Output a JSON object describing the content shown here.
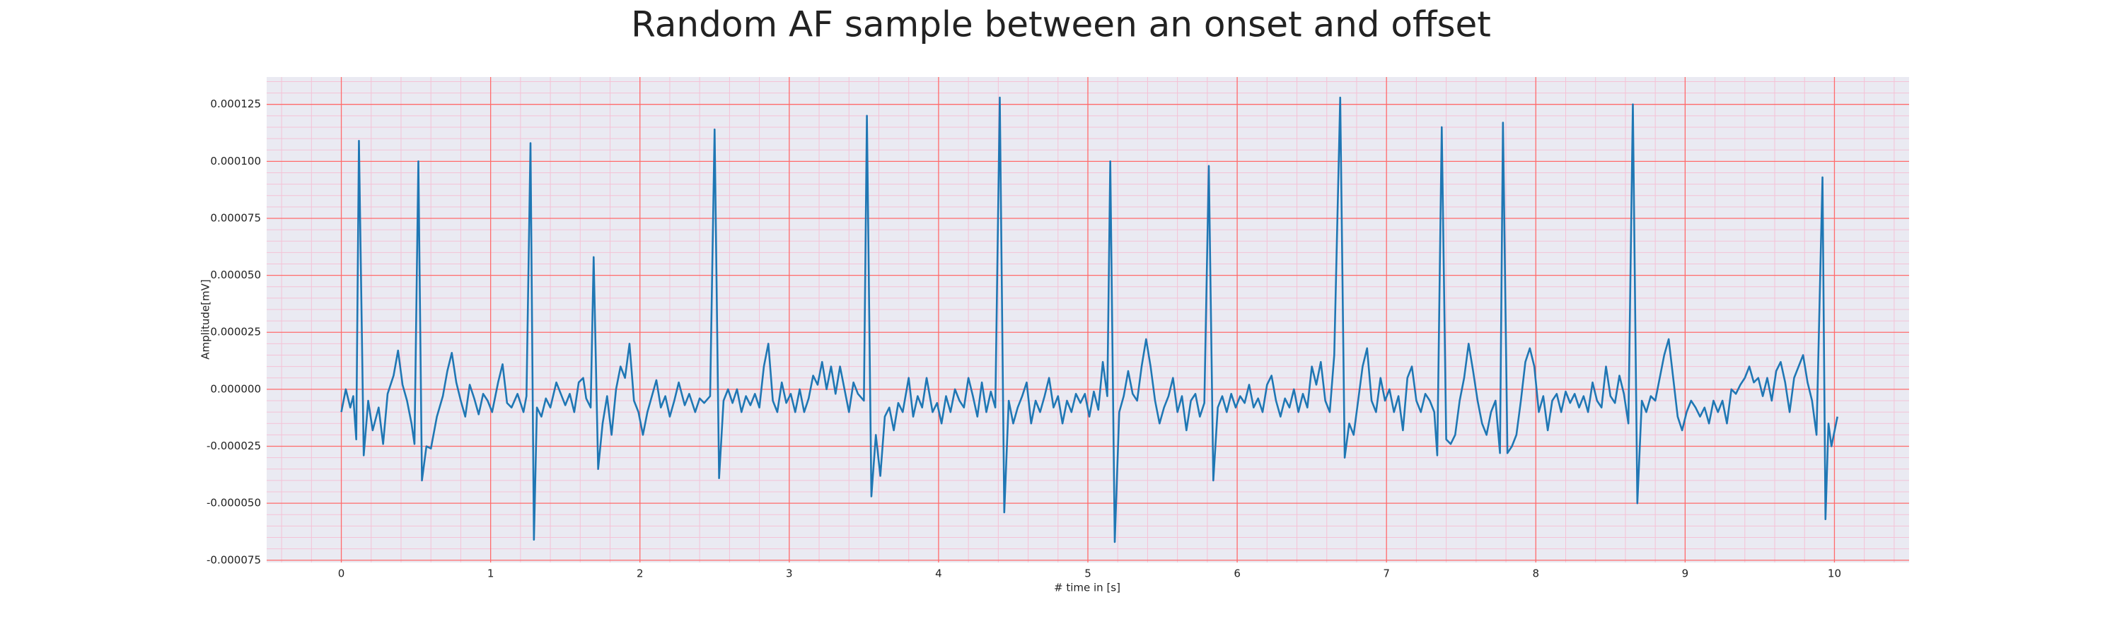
{
  "chart_data": {
    "type": "line",
    "title": "Random AF sample between an onset and offset",
    "x_label": "# time in [s]",
    "y_label": "Amplitude[mV]",
    "color": "#1f77b4",
    "grid": true,
    "minor_grid": true,
    "xlim": [
      -0.5,
      10.5
    ],
    "ylim": [
      -7.6e-05,
      0.000137
    ],
    "xticks": [
      0,
      1,
      2,
      3,
      4,
      5,
      6,
      7,
      8,
      9,
      10
    ],
    "yticks": [
      {
        "value": -7.5e-05,
        "label": "-0.000075"
      },
      {
        "value": -5e-05,
        "label": "-0.000050"
      },
      {
        "value": -2.5e-05,
        "label": "-0.000025"
      },
      {
        "value": 0,
        "label": "0.000000"
      },
      {
        "value": 2.5e-05,
        "label": "0.000025"
      },
      {
        "value": 5e-05,
        "label": "0.000050"
      },
      {
        "value": 7.5e-05,
        "label": "0.000075"
      },
      {
        "value": 0.0001,
        "label": "0.000100"
      },
      {
        "value": 0.000125,
        "label": "0.000125"
      }
    ],
    "x": [
      0.0,
      0.03,
      0.06,
      0.08,
      0.1,
      0.118,
      0.15,
      0.18,
      0.21,
      0.25,
      0.28,
      0.31,
      0.35,
      0.38,
      0.41,
      0.44,
      0.47,
      0.49,
      0.516,
      0.54,
      0.57,
      0.6,
      0.64,
      0.68,
      0.71,
      0.74,
      0.77,
      0.8,
      0.83,
      0.86,
      0.89,
      0.92,
      0.95,
      0.98,
      1.01,
      1.05,
      1.08,
      1.11,
      1.14,
      1.18,
      1.22,
      1.24,
      1.267,
      1.29,
      1.31,
      1.34,
      1.37,
      1.4,
      1.44,
      1.47,
      1.5,
      1.53,
      1.56,
      1.59,
      1.62,
      1.64,
      1.67,
      1.69,
      1.72,
      1.75,
      1.78,
      1.81,
      1.84,
      1.87,
      1.9,
      1.93,
      1.96,
      1.99,
      2.02,
      2.05,
      2.08,
      2.11,
      2.14,
      2.17,
      2.2,
      2.23,
      2.26,
      2.3,
      2.33,
      2.37,
      2.4,
      2.43,
      2.47,
      2.5,
      2.53,
      2.56,
      2.59,
      2.62,
      2.65,
      2.68,
      2.71,
      2.74,
      2.77,
      2.8,
      2.83,
      2.86,
      2.89,
      2.92,
      2.95,
      2.98,
      3.01,
      3.04,
      3.07,
      3.1,
      3.13,
      3.16,
      3.19,
      3.22,
      3.25,
      3.28,
      3.31,
      3.34,
      3.37,
      3.4,
      3.43,
      3.46,
      3.5,
      3.52,
      3.55,
      3.58,
      3.61,
      3.64,
      3.67,
      3.7,
      3.73,
      3.76,
      3.8,
      3.83,
      3.86,
      3.89,
      3.92,
      3.96,
      3.99,
      4.02,
      4.05,
      4.08,
      4.11,
      4.14,
      4.17,
      4.2,
      4.23,
      4.26,
      4.29,
      4.32,
      4.35,
      4.38,
      4.41,
      4.44,
      4.47,
      4.5,
      4.53,
      4.56,
      4.59,
      4.62,
      4.65,
      4.68,
      4.71,
      4.74,
      4.77,
      4.8,
      4.83,
      4.86,
      4.89,
      4.92,
      4.95,
      4.98,
      5.01,
      5.04,
      5.07,
      5.1,
      5.13,
      5.15,
      5.18,
      5.21,
      5.24,
      5.27,
      5.3,
      5.33,
      5.36,
      5.39,
      5.42,
      5.45,
      5.48,
      5.51,
      5.54,
      5.57,
      5.6,
      5.63,
      5.66,
      5.69,
      5.72,
      5.75,
      5.78,
      5.81,
      5.84,
      5.87,
      5.9,
      5.93,
      5.96,
      5.99,
      6.02,
      6.05,
      6.08,
      6.11,
      6.14,
      6.17,
      6.2,
      6.23,
      6.26,
      6.29,
      6.32,
      6.35,
      6.38,
      6.41,
      6.44,
      6.47,
      6.5,
      6.53,
      6.56,
      6.59,
      6.62,
      6.65,
      6.69,
      6.72,
      6.75,
      6.78,
      6.81,
      6.84,
      6.87,
      6.9,
      6.93,
      6.96,
      6.99,
      7.02,
      7.05,
      7.08,
      7.11,
      7.14,
      7.17,
      7.2,
      7.23,
      7.26,
      7.29,
      7.32,
      7.34,
      7.37,
      7.4,
      7.43,
      7.46,
      7.49,
      7.52,
      7.55,
      7.58,
      7.61,
      7.64,
      7.67,
      7.7,
      7.73,
      7.76,
      7.78,
      7.81,
      7.84,
      7.87,
      7.9,
      7.93,
      7.96,
      7.99,
      8.02,
      8.05,
      8.08,
      8.11,
      8.14,
      8.17,
      8.2,
      8.23,
      8.26,
      8.29,
      8.32,
      8.35,
      8.38,
      8.41,
      8.44,
      8.47,
      8.5,
      8.53,
      8.56,
      8.59,
      8.62,
      8.65,
      8.68,
      8.71,
      8.74,
      8.77,
      8.8,
      8.83,
      8.86,
      8.89,
      8.92,
      8.95,
      8.98,
      9.01,
      9.04,
      9.07,
      9.1,
      9.13,
      9.16,
      9.19,
      9.22,
      9.25,
      9.28,
      9.31,
      9.34,
      9.37,
      9.4,
      9.43,
      9.46,
      9.49,
      9.52,
      9.55,
      9.58,
      9.61,
      9.64,
      9.67,
      9.7,
      9.73,
      9.76,
      9.79,
      9.82,
      9.85,
      9.88,
      9.92,
      9.94,
      9.96,
      9.98,
      10.02
    ],
    "values": [
      -1e-05,
      0,
      -8e-06,
      -3e-06,
      -2.2e-05,
      0.000109,
      -2.9e-05,
      -5e-06,
      -1.8e-05,
      -8e-06,
      -2.4e-05,
      -2e-06,
      6e-06,
      1.7e-05,
      2e-06,
      -5e-06,
      -1.5e-05,
      -2.4e-05,
      0.0001,
      -4e-05,
      -2.5e-05,
      -2.6e-05,
      -1.2e-05,
      -3e-06,
      8e-06,
      1.6e-05,
      3e-06,
      -5e-06,
      -1.2e-05,
      2e-06,
      -4e-06,
      -1.1e-05,
      -2e-06,
      -5e-06,
      -1e-05,
      3e-06,
      1.1e-05,
      -6e-06,
      -8e-06,
      -2e-06,
      -1e-05,
      -3e-06,
      0.000108,
      -6.6e-05,
      -8e-06,
      -1.2e-05,
      -4e-06,
      -8e-06,
      3e-06,
      -2e-06,
      -7e-06,
      -2e-06,
      -1e-05,
      3e-06,
      5e-06,
      -4e-06,
      -8e-06,
      5.8e-05,
      -3.5e-05,
      -1.5e-05,
      -3e-06,
      -2e-05,
      0,
      1e-05,
      5e-06,
      2e-05,
      -5e-06,
      -1e-05,
      -2e-05,
      -1e-05,
      -3e-06,
      4e-06,
      -8e-06,
      -3e-06,
      -1.2e-05,
      -5e-06,
      3e-06,
      -7e-06,
      -2e-06,
      -1e-05,
      -4e-06,
      -6e-06,
      -3e-06,
      0.000114,
      -3.9e-05,
      -5e-06,
      0,
      -6e-06,
      0,
      -1e-05,
      -3e-06,
      -7e-06,
      -2e-06,
      -8e-06,
      1e-05,
      2e-05,
      -5e-06,
      -1e-05,
      3e-06,
      -6e-06,
      -2e-06,
      -1e-05,
      0,
      -1e-05,
      -4e-06,
      6e-06,
      2e-06,
      1.2e-05,
      0,
      1e-05,
      -2e-06,
      1e-05,
      0,
      -1e-05,
      3e-06,
      -2e-06,
      -5e-06,
      0.00012,
      -4.7e-05,
      -2e-05,
      -3.8e-05,
      -1.2e-05,
      -8e-06,
      -1.8e-05,
      -6e-06,
      -1e-05,
      5e-06,
      -1.2e-05,
      -3e-06,
      -8e-06,
      5e-06,
      -1e-05,
      -6e-06,
      -1.5e-05,
      -3e-06,
      -1e-05,
      0,
      -5e-06,
      -8e-06,
      5e-06,
      -3e-06,
      -1.2e-05,
      3e-06,
      -1e-05,
      -1e-06,
      -8e-06,
      0.000128,
      -5.4e-05,
      -5e-06,
      -1.5e-05,
      -8e-06,
      -3e-06,
      3e-06,
      -1.5e-05,
      -5e-06,
      -1e-05,
      -3e-06,
      5e-06,
      -8e-06,
      -3e-06,
      -1.5e-05,
      -5e-06,
      -1e-05,
      -2e-06,
      -6e-06,
      -2e-06,
      -1.2e-05,
      -1e-06,
      -9e-06,
      1.2e-05,
      -3e-06,
      0.0001,
      -6.7e-05,
      -1e-05,
      -3e-06,
      8e-06,
      -2e-06,
      -5e-06,
      1e-05,
      2.2e-05,
      1e-05,
      -5e-06,
      -1.5e-05,
      -8e-06,
      -3e-06,
      5e-06,
      -1e-05,
      -3e-06,
      -1.8e-05,
      -5e-06,
      -2e-06,
      -1.2e-05,
      -6e-06,
      9.8e-05,
      -4e-05,
      -8e-06,
      -3e-06,
      -1e-05,
      -2e-06,
      -8e-06,
      -3e-06,
      -6e-06,
      2e-06,
      -8e-06,
      -4e-06,
      -1e-05,
      2e-06,
      6e-06,
      -5e-06,
      -1.2e-05,
      -4e-06,
      -8e-06,
      0,
      -1e-05,
      -2e-06,
      -8e-06,
      1e-05,
      2e-06,
      1.2e-05,
      -5e-06,
      -1e-05,
      1.5e-05,
      0.000128,
      -3e-05,
      -1.5e-05,
      -2e-05,
      -5e-06,
      1e-05,
      1.8e-05,
      -5e-06,
      -1e-05,
      5e-06,
      -5e-06,
      0,
      -1e-05,
      -3e-06,
      -1.8e-05,
      5e-06,
      1e-05,
      -5e-06,
      -1e-05,
      -2e-06,
      -5e-06,
      -1e-05,
      -2.9e-05,
      0.000115,
      -2.2e-05,
      -2.4e-05,
      -2e-05,
      -5e-06,
      5e-06,
      2e-05,
      8e-06,
      -5e-06,
      -1.5e-05,
      -2e-05,
      -1e-05,
      -5e-06,
      -2.8e-05,
      0.000117,
      -2.8e-05,
      -2.5e-05,
      -2e-05,
      -5e-06,
      1.2e-05,
      1.8e-05,
      1e-05,
      -1e-05,
      -3e-06,
      -1.8e-05,
      -5e-06,
      -2e-06,
      -1e-05,
      -1e-06,
      -6e-06,
      -2e-06,
      -8e-06,
      -3e-06,
      -1e-05,
      3e-06,
      -5e-06,
      -8e-06,
      1e-05,
      -3e-06,
      -6e-06,
      6e-06,
      -2e-06,
      -1.5e-05,
      0.000125,
      -5e-05,
      -5e-06,
      -1e-05,
      -3e-06,
      -5e-06,
      5e-06,
      1.5e-05,
      2.2e-05,
      5e-06,
      -1.2e-05,
      -1.8e-05,
      -1e-05,
      -5e-06,
      -8e-06,
      -1.2e-05,
      -8e-06,
      -1.5e-05,
      -5e-06,
      -1e-05,
      -5e-06,
      -1.5e-05,
      0,
      -2e-06,
      2e-06,
      5e-06,
      1e-05,
      3e-06,
      5e-06,
      -3e-06,
      5e-06,
      -5e-06,
      8e-06,
      1.2e-05,
      3e-06,
      -1e-05,
      5e-06,
      1e-05,
      1.5e-05,
      3e-06,
      -5e-06,
      -2e-05,
      9.3e-05,
      -5.7e-05,
      -1.5e-05,
      -2.5e-05,
      -1.2e-05
    ]
  }
}
